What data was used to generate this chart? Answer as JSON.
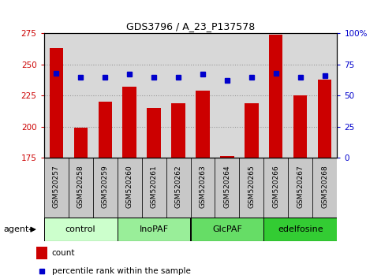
{
  "title": "GDS3796 / A_23_P137578",
  "samples": [
    "GSM520257",
    "GSM520258",
    "GSM520259",
    "GSM520260",
    "GSM520261",
    "GSM520262",
    "GSM520263",
    "GSM520264",
    "GSM520265",
    "GSM520266",
    "GSM520267",
    "GSM520268"
  ],
  "counts": [
    263,
    199,
    220,
    232,
    215,
    219,
    229,
    176,
    219,
    274,
    225,
    238
  ],
  "percentiles": [
    68,
    65,
    65,
    67,
    65,
    65,
    67,
    62,
    65,
    68,
    65,
    66
  ],
  "ylim_left": [
    175,
    275
  ],
  "ylim_right": [
    0,
    100
  ],
  "yticks_left": [
    175,
    200,
    225,
    250,
    275
  ],
  "yticks_right": [
    0,
    25,
    50,
    75,
    100
  ],
  "ytick_right_labels": [
    "0",
    "25",
    "50",
    "75",
    "100%"
  ],
  "groups": [
    {
      "label": "control",
      "start": 0,
      "end": 3,
      "color": "#ccffcc"
    },
    {
      "label": "InoPAF",
      "start": 3,
      "end": 6,
      "color": "#99ee99"
    },
    {
      "label": "GlcPAF",
      "start": 6,
      "end": 9,
      "color": "#66dd66"
    },
    {
      "label": "edelfosine",
      "start": 9,
      "end": 12,
      "color": "#33cc33"
    }
  ],
  "bar_color": "#cc0000",
  "dot_color": "#0000cc",
  "bar_width": 0.55,
  "grid_color": "#999999",
  "plot_bg_color": "#d8d8d8",
  "label_bg_color": "#c8c8c8",
  "agent_label": "agent",
  "legend_count_label": "count",
  "legend_pct_label": "percentile rank within the sample",
  "title_fontsize": 9,
  "tick_fontsize": 7.5,
  "sample_fontsize": 6.5,
  "legend_fontsize": 7.5,
  "group_fontsize": 8
}
